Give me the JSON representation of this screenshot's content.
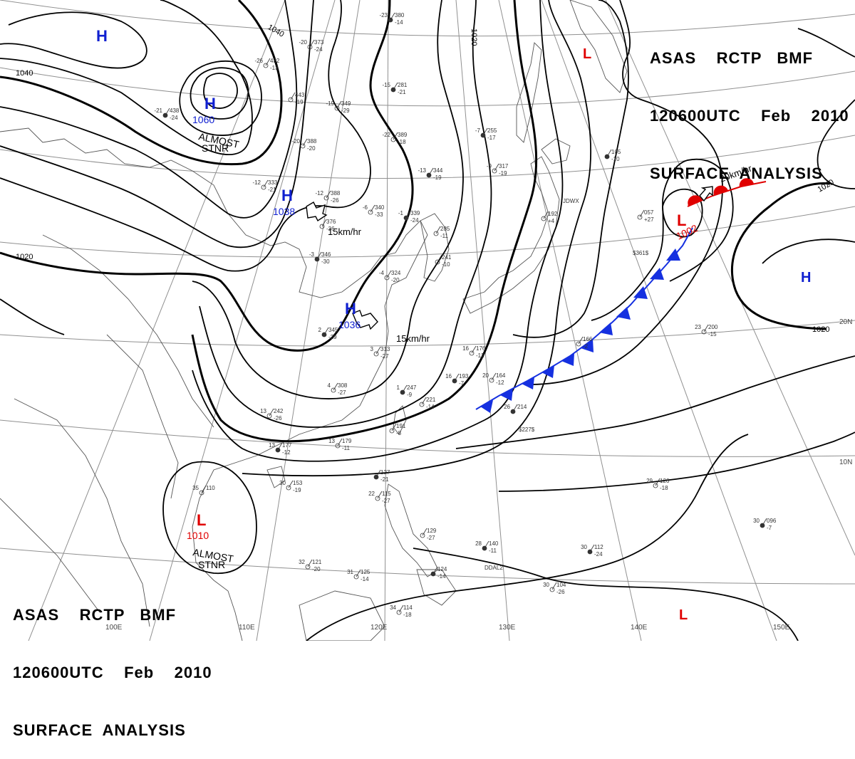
{
  "title": {
    "line1": "ASAS    RCTP   BMF",
    "line2": "120600UTC    Feb    2010",
    "line3": "SURFACE  ANALYSIS"
  },
  "colors": {
    "high_label": "#1020d0",
    "low_label": "#e00000",
    "isobar": "#000000",
    "grid": "#808080",
    "coast": "#505050",
    "cold_front": "#1530e0",
    "warm_front": "#e00000"
  },
  "pressure_centers": [
    {
      "id": "h-northwest",
      "type": "H",
      "value": ""
    },
    {
      "id": "h-mongolia",
      "type": "H",
      "value": "1060",
      "note_line1": "ALMOST",
      "note_line2": "STNR"
    },
    {
      "id": "h-north-china",
      "type": "H",
      "value": "1038",
      "motion": "15km/hr"
    },
    {
      "id": "h-east-china",
      "type": "H",
      "value": "1036",
      "motion": "15km/hr"
    },
    {
      "id": "l-okhotsk",
      "type": "L",
      "value": ""
    },
    {
      "id": "l-pacific",
      "type": "L",
      "value": "1002",
      "motion": "20km/hr"
    },
    {
      "id": "h-pacific",
      "type": "H",
      "value": ""
    },
    {
      "id": "l-indochina",
      "type": "L",
      "value": "1010",
      "note_line1": "ALMOST",
      "note_line2": "STNR"
    },
    {
      "id": "l-south-pacific",
      "type": "L",
      "value": ""
    }
  ],
  "isobar_labels": {
    "l1040a": "1040",
    "l1040b": "1040",
    "l1020a": "1020",
    "l1020b": "1020",
    "l1020c": "1020",
    "l1020d": "1020"
  },
  "longitude_labels": [
    "110E",
    "120E",
    "130E",
    "140E",
    "150E",
    "100E"
  ],
  "latitude_labels": [
    "20N",
    "10N"
  ],
  "stations": [
    {
      "t": "-23",
      "p": "380",
      "d": "-14"
    },
    {
      "t": "-20",
      "p": "373",
      "d": "-24"
    },
    {
      "t": "-26",
      "p": "432",
      "d": "-13"
    },
    {
      "t": "-21",
      "p": "438",
      "d": "-24"
    },
    {
      "t": "",
      "p": "443",
      "d": "-19"
    },
    {
      "t": "-19",
      "p": "349",
      "d": "-29"
    },
    {
      "t": "-15",
      "p": "281",
      "d": "-21"
    },
    {
      "t": "-20",
      "p": "388",
      "d": "-20"
    },
    {
      "t": "-22",
      "p": "389",
      "d": "-18"
    },
    {
      "t": "-7",
      "p": "255",
      "d": "-17"
    },
    {
      "t": "-12",
      "p": "333",
      "d": "-21"
    },
    {
      "t": "-12",
      "p": "388",
      "d": "-26"
    },
    {
      "t": "-13",
      "p": "344",
      "d": "-19"
    },
    {
      "t": "-9",
      "p": "317",
      "d": "-19"
    },
    {
      "t": "-6",
      "p": "340",
      "d": "-33"
    },
    {
      "t": "-1",
      "p": "339",
      "d": "-24"
    },
    {
      "t": "",
      "p": "376",
      "d": "-36"
    },
    {
      "t": "",
      "p": "285",
      "d": "-11"
    },
    {
      "t": "-3",
      "p": "346",
      "d": "-30"
    },
    {
      "t": "",
      "p": "241",
      "d": "-10"
    },
    {
      "t": "-4",
      "p": "324",
      "d": "-20"
    },
    {
      "t": "2",
      "p": "345",
      "d": "-29"
    },
    {
      "t": "3",
      "p": "313",
      "d": "-27"
    },
    {
      "t": "4",
      "p": "308",
      "d": "-27"
    },
    {
      "t": "1",
      "p": "247",
      "d": "-9"
    },
    {
      "t": "",
      "p": "221",
      "d": "-14"
    },
    {
      "t": "16",
      "p": "176",
      "d": "-12"
    },
    {
      "t": "16",
      "p": "193",
      "d": "-7"
    },
    {
      "t": "20",
      "p": "164",
      "d": "-12"
    },
    {
      "t": "13",
      "p": "242",
      "d": "-26"
    },
    {
      "t": "13",
      "p": "177",
      "d": "-12"
    },
    {
      "t": "13",
      "p": "179",
      "d": "-11"
    },
    {
      "t": "",
      "p": "191",
      "d": "-8"
    },
    {
      "t": "26",
      "p": "214",
      "d": ""
    },
    {
      "t": "30",
      "p": "153",
      "d": "-19"
    },
    {
      "t": "35",
      "p": "110",
      "d": ""
    },
    {
      "t": "",
      "p": "127",
      "d": "-21"
    },
    {
      "t": "22",
      "p": "115",
      "d": "-27"
    },
    {
      "t": "",
      "p": "129",
      "d": "-27"
    },
    {
      "t": "28",
      "p": "140",
      "d": "-11"
    },
    {
      "t": "32",
      "p": "121",
      "d": "-20"
    },
    {
      "t": "31",
      "p": "125",
      "d": "-14"
    },
    {
      "t": "",
      "p": "124",
      "d": "-14"
    },
    {
      "t": "30",
      "p": "104",
      "d": "-26"
    },
    {
      "t": "29",
      "p": "126",
      "d": "-18"
    },
    {
      "t": "30",
      "p": "112",
      "d": "-24"
    },
    {
      "t": "34",
      "p": "114",
      "d": "-18"
    },
    {
      "t": "23",
      "p": "200",
      "d": "-15"
    },
    {
      "t": "",
      "p": "105",
      "d": "-10"
    },
    {
      "t": "",
      "p": "057",
      "d": "+27"
    },
    {
      "t": "",
      "p": "166",
      "d": "-2"
    },
    {
      "t": "30",
      "p": "096",
      "d": "-7"
    },
    {
      "t": "",
      "p": "192",
      "d": "+4"
    }
  ],
  "misc_labels": {
    "jdwx": "JDWX",
    "ship1": "$227$",
    "ddal": "DDAL2",
    "ship2": "$361$"
  }
}
